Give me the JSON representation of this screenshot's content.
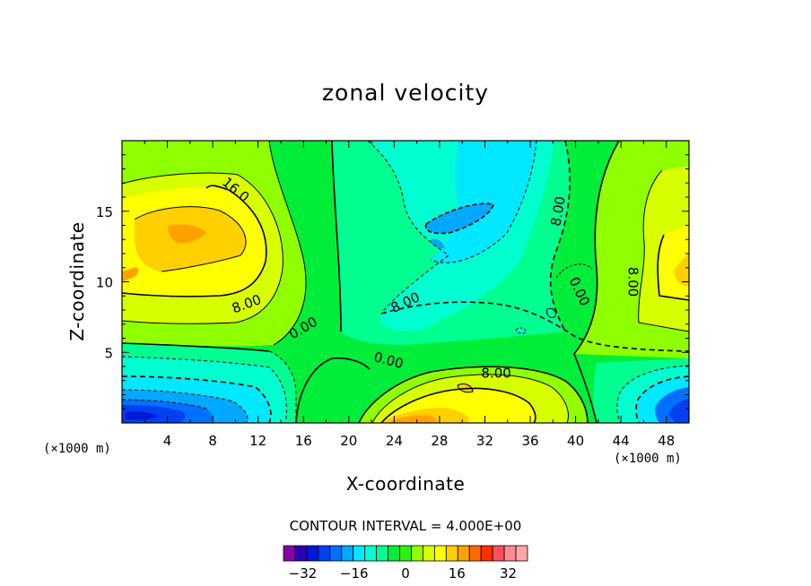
{
  "chart_data": {
    "type": "heatmap",
    "title": "zonal velocity",
    "xlabel": "X-coordinate",
    "ylabel": "Z-coordinate",
    "x_unit": "(×1000 m)",
    "xlim": [
      0,
      50
    ],
    "ylim": [
      0,
      20
    ],
    "x_ticks": [
      "4",
      "8",
      "12",
      "16",
      "20",
      "24",
      "28",
      "32",
      "36",
      "40",
      "44",
      "48"
    ],
    "x_tick_values": [
      4,
      8,
      12,
      16,
      20,
      24,
      28,
      32,
      36,
      40,
      44,
      48
    ],
    "y_ticks": [
      "5",
      "10",
      "15"
    ],
    "y_tick_values": [
      5,
      10,
      15
    ],
    "contour_interval": "CONTOUR INTERVAL = 4.000E+00",
    "contour_labels": [
      {
        "text": "16.0",
        "x": 10,
        "z": 16.5,
        "angle": 40
      },
      {
        "text": "8.00",
        "x": 11,
        "z": 8.4,
        "angle": -20
      },
      {
        "text": "0.00",
        "x": 16,
        "z": 6.7,
        "angle": -30
      },
      {
        "text": "8.00",
        "x": 25,
        "z": 8.5,
        "angle": -25
      },
      {
        "text": "0.00",
        "x": 23.5,
        "z": 4.4,
        "angle": 15
      },
      {
        "text": "8.00",
        "x": 33,
        "z": 3.5,
        "angle": 0
      },
      {
        "text": "8.00",
        "x": 38.5,
        "z": 15,
        "angle": -80
      },
      {
        "text": "0.00",
        "x": 40.3,
        "z": 9.3,
        "angle": 65
      },
      {
        "text": "8.00",
        "x": 45,
        "z": 10,
        "angle": 90
      }
    ],
    "colorbar": {
      "levels": [
        -36,
        -32,
        -28,
        -24,
        -20,
        -16,
        -12,
        -8,
        -4,
        0,
        4,
        8,
        12,
        16,
        20,
        24,
        28,
        32,
        36
      ],
      "labels": [
        "-32",
        "-16",
        "0",
        "16",
        "32"
      ],
      "label_values": [
        -32,
        -16,
        0,
        16,
        32
      ],
      "colors": [
        "#8a00a8",
        "#2a00b8",
        "#0018d8",
        "#0040f0",
        "#0070ff",
        "#00a8ff",
        "#00e8ff",
        "#00ffd0",
        "#00ff90",
        "#00ee3a",
        "#30f010",
        "#90ff00",
        "#d8ff00",
        "#ffff00",
        "#ffd000",
        "#ffa200",
        "#ff6a00",
        "#ff3000",
        "#ff5060",
        "#ff8c90",
        "#ffa8a8"
      ]
    },
    "field_samples": [
      {
        "x": 6,
        "z": 13,
        "u": 20
      },
      {
        "x": 1,
        "z": 0.5,
        "u": -28
      },
      {
        "x": 30,
        "z": 13.5,
        "u": -12
      },
      {
        "x": 27,
        "z": 0.5,
        "u": 24
      },
      {
        "x": 48,
        "z": 0.5,
        "u": -24
      },
      {
        "x": 48,
        "z": 10,
        "u": 16
      },
      {
        "x": 20,
        "z": 10,
        "u": 0
      }
    ]
  }
}
